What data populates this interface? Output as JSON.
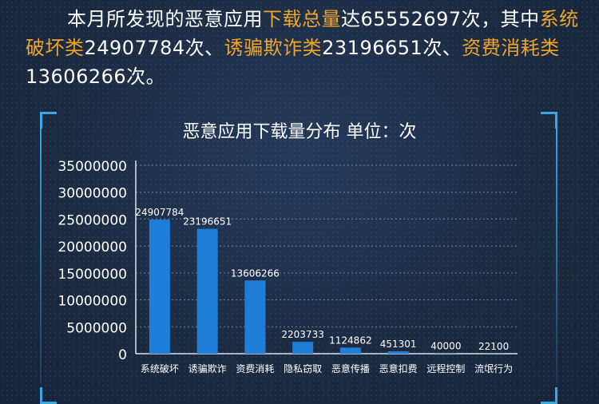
{
  "summary": {
    "t1": "本月所发现的恶意应用",
    "h1": "下载总量",
    "t2": "达65552697次，其中",
    "h2": "系统破坏类",
    "t3": "24907784次、",
    "h3": "诱骗欺诈类",
    "t4": "23196651次、",
    "h4": "资费消耗类",
    "t5": "13606266次。"
  },
  "colors": {
    "bar": "#1f7fd8",
    "highlight": "#f0a52a",
    "frame": "#3aa8e0"
  },
  "chart_data": {
    "type": "bar",
    "title": "恶意应用下载量分布    单位：次",
    "categories": [
      "系统破坏",
      "诱骗欺诈",
      "资费消耗",
      "隐私窃取",
      "恶意传播",
      "恶意扣费",
      "远程控制",
      "流氓行为"
    ],
    "values": [
      24907784,
      23196651,
      13606266,
      2203733,
      1124862,
      451301,
      40000,
      22100
    ],
    "data_labels": [
      "24907784",
      "23196651",
      "13606266",
      "2203733",
      "1124862",
      "451301",
      "40000",
      "22100"
    ],
    "ylim": [
      0,
      35000000
    ],
    "yticks": [
      "0",
      "5000000",
      "10000000",
      "15000000",
      "20000000",
      "25000000",
      "30000000",
      "35000000"
    ],
    "grid": true,
    "legend": "none"
  }
}
